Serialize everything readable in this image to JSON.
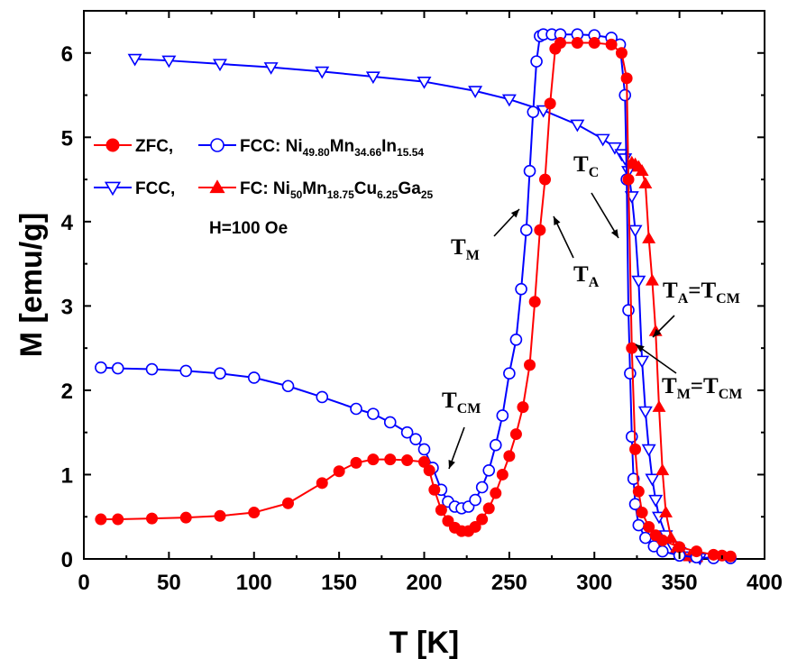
{
  "chart_data": {
    "type": "scatter",
    "xlabel": "T [K]",
    "ylabel": "M [emu/g]",
    "xlim": [
      0,
      400
    ],
    "ylim": [
      0,
      6.5
    ],
    "xticks": [
      "0",
      "50",
      "100",
      "150",
      "200",
      "250",
      "300",
      "350",
      "400"
    ],
    "yticks": [
      "0",
      "1",
      "2",
      "3",
      "4",
      "5",
      "6"
    ],
    "grid": false,
    "legend_position": "upper-left",
    "legend": {
      "row1": {
        "a_label": "ZFC,",
        "b_label": "FCC: Ni",
        "b_parts": [
          {
            "t": "FCC: Ni",
            "sub": false
          },
          {
            "t": "49.80",
            "sub": true
          },
          {
            "t": "Mn",
            "sub": false
          },
          {
            "t": "34.66",
            "sub": true
          },
          {
            "t": "In",
            "sub": false
          },
          {
            "t": "15.54",
            "sub": true
          }
        ]
      },
      "row2": {
        "a_label": "FCC,",
        "b_label": "FC: Ni",
        "b_parts": [
          {
            "t": "FC: Ni",
            "sub": false
          },
          {
            "t": "50",
            "sub": true
          },
          {
            "t": "Mn",
            "sub": false
          },
          {
            "t": "18.75",
            "sub": true
          },
          {
            "t": "Cu",
            "sub": false
          },
          {
            "t": "6.25",
            "sub": true
          },
          {
            "t": "Ga",
            "sub": false
          },
          {
            "t": "25",
            "sub": true
          }
        ]
      },
      "field_label": "H=100 Oe"
    },
    "annotations": {
      "t_cm": {
        "main": "T",
        "sub": "CM"
      },
      "t_m": {
        "main": "T",
        "sub": "M"
      },
      "t_a": {
        "main": "T",
        "sub": "A"
      },
      "t_c": {
        "main": "T",
        "sub": "C"
      },
      "ta_tcm": {
        "main": "T",
        "sub": "A",
        "eq": "=T",
        "sub2": "CM"
      },
      "tm_tcm": {
        "main": "T",
        "sub": "M",
        "eq": "=T",
        "sub2": "CM"
      }
    },
    "series": [
      {
        "name": "ZFC",
        "alloy": "Ni49.80Mn34.66In15.54",
        "color": "#ff0000",
        "marker": "filled-circle",
        "x": [
          10,
          20,
          40,
          60,
          80,
          100,
          120,
          140,
          150,
          160,
          170,
          180,
          190,
          200,
          203,
          206,
          210,
          214,
          218,
          222,
          226,
          230,
          234,
          238,
          242,
          246,
          250,
          254,
          258,
          262,
          265,
          268,
          271,
          274,
          277,
          280,
          290,
          300,
          310,
          316,
          319,
          320,
          322,
          324,
          326,
          328,
          332,
          336,
          340,
          350,
          360,
          370,
          375,
          380
        ],
        "y": [
          0.47,
          0.47,
          0.48,
          0.49,
          0.51,
          0.55,
          0.66,
          0.9,
          1.04,
          1.14,
          1.18,
          1.18,
          1.17,
          1.15,
          1.05,
          0.82,
          0.58,
          0.45,
          0.37,
          0.33,
          0.33,
          0.38,
          0.47,
          0.6,
          0.78,
          1.0,
          1.22,
          1.48,
          1.8,
          2.3,
          3.05,
          3.9,
          4.5,
          5.4,
          6.05,
          6.12,
          6.12,
          6.12,
          6.1,
          6.0,
          5.7,
          4.5,
          2.5,
          1.3,
          0.8,
          0.55,
          0.38,
          0.28,
          0.22,
          0.14,
          0.09,
          0.05,
          0.04,
          0.03
        ]
      },
      {
        "name": "FCC",
        "alloy": "Ni49.80Mn34.66In15.54",
        "color": "#0000ff",
        "marker": "open-circle",
        "x": [
          10,
          20,
          40,
          60,
          80,
          100,
          120,
          140,
          160,
          170,
          180,
          190,
          195,
          200,
          205,
          210,
          214,
          218,
          222,
          226,
          230,
          234,
          238,
          242,
          246,
          250,
          254,
          257,
          260,
          262,
          264,
          266,
          268,
          270,
          275,
          280,
          290,
          300,
          310,
          315,
          318,
          319,
          320,
          321,
          322,
          323,
          324,
          326,
          330,
          335,
          340,
          350,
          360,
          370,
          380
        ],
        "y": [
          2.27,
          2.26,
          2.25,
          2.23,
          2.2,
          2.15,
          2.05,
          1.92,
          1.78,
          1.72,
          1.62,
          1.5,
          1.42,
          1.3,
          1.08,
          0.82,
          0.68,
          0.62,
          0.6,
          0.62,
          0.7,
          0.85,
          1.05,
          1.35,
          1.7,
          2.2,
          2.6,
          3.2,
          3.9,
          4.6,
          5.3,
          5.9,
          6.2,
          6.22,
          6.22,
          6.22,
          6.22,
          6.21,
          6.18,
          6.1,
          5.5,
          4.5,
          2.95,
          2.2,
          1.45,
          0.95,
          0.65,
          0.4,
          0.25,
          0.15,
          0.09,
          0.04,
          0.02,
          0.01,
          0.01
        ]
      },
      {
        "name": "FCC",
        "alloy": "Ni50Mn18.75Cu6.25Ga25",
        "color": "#0000ff",
        "marker": "open-triangle-down",
        "x": [
          30,
          50,
          80,
          110,
          140,
          170,
          200,
          230,
          250,
          270,
          290,
          305,
          312,
          316,
          318,
          320,
          322,
          324,
          326,
          328,
          330,
          332,
          334,
          336,
          338,
          342,
          346,
          350,
          356,
          362
        ],
        "y": [
          5.93,
          5.91,
          5.87,
          5.83,
          5.78,
          5.72,
          5.66,
          5.55,
          5.45,
          5.32,
          5.15,
          4.98,
          4.88,
          4.8,
          4.75,
          4.6,
          4.3,
          3.9,
          3.3,
          2.35,
          1.75,
          1.3,
          0.95,
          0.7,
          0.5,
          0.28,
          0.15,
          0.08,
          0.03,
          0.01
        ]
      },
      {
        "name": "FC",
        "alloy": "Ni50Mn18.75Cu6.25Ga25",
        "color": "#ff0000",
        "marker": "filled-triangle-up",
        "x": [
          322,
          324,
          326,
          328,
          330,
          332,
          334,
          336,
          338,
          340,
          342,
          345,
          348,
          352,
          356,
          360
        ],
        "y": [
          4.7,
          4.68,
          4.65,
          4.6,
          4.45,
          3.8,
          3.3,
          2.7,
          1.8,
          1.05,
          0.55,
          0.25,
          0.12,
          0.06,
          0.03,
          0.02
        ]
      }
    ]
  }
}
